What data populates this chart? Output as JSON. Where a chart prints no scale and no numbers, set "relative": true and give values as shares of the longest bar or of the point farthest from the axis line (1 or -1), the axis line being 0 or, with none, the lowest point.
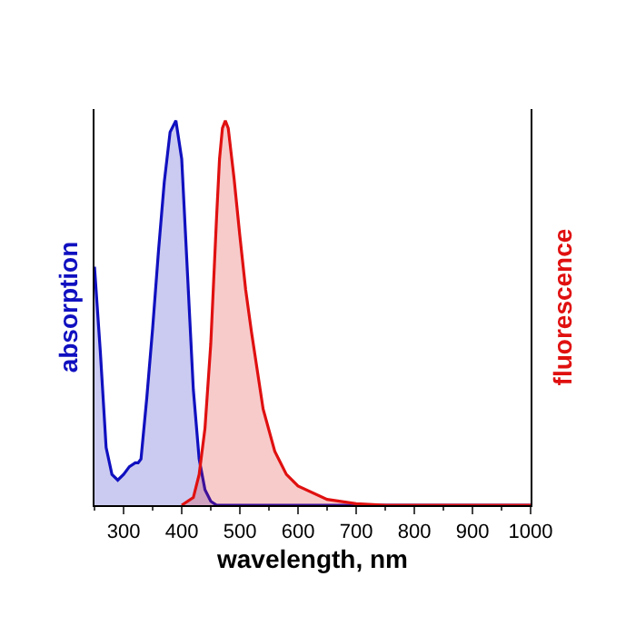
{
  "chart_data": {
    "type": "area",
    "relative": true,
    "xlabel": "wavelength, nm",
    "ylabel": "absorption",
    "y2label": "fluorescence",
    "xlim": [
      250,
      1000
    ],
    "xticks": [
      300,
      400,
      500,
      600,
      700,
      800,
      900,
      1000
    ],
    "tick_labels": "x",
    "series": [
      {
        "color": "#1010c0",
        "x": [
          250,
          260,
          270,
          280,
          290,
          300,
          310,
          320,
          325,
          330,
          340,
          350,
          360,
          370,
          380,
          390,
          400,
          410,
          420,
          430,
          440,
          450,
          460,
          480,
          500,
          1000
        ],
        "values": [
          0.62,
          0.4,
          0.15,
          0.08,
          0.065,
          0.08,
          0.1,
          0.11,
          0.11,
          0.12,
          0.28,
          0.46,
          0.66,
          0.84,
          0.97,
          1.0,
          0.9,
          0.6,
          0.3,
          0.12,
          0.04,
          0.01,
          0,
          0,
          0,
          0
        ]
      },
      {
        "color": "#e01010",
        "axis": "y2",
        "x": [
          400,
          420,
          430,
          440,
          450,
          460,
          465,
          470,
          475,
          480,
          490,
          500,
          510,
          520,
          540,
          560,
          580,
          600,
          650,
          700,
          750,
          1000
        ],
        "values": [
          0,
          0.02,
          0.08,
          0.2,
          0.42,
          0.75,
          0.9,
          0.98,
          1.0,
          0.98,
          0.85,
          0.7,
          0.56,
          0.45,
          0.25,
          0.14,
          0.08,
          0.05,
          0.015,
          0.004,
          0,
          0
        ]
      }
    ]
  }
}
